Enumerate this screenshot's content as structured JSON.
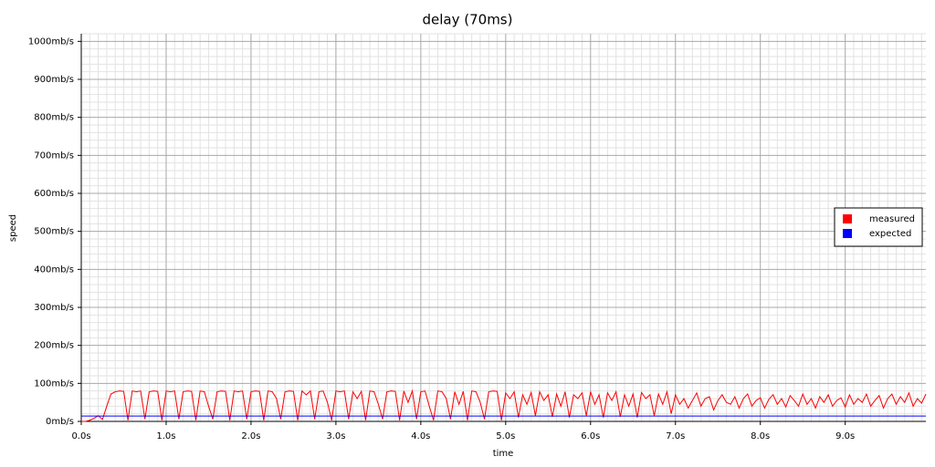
{
  "chart_data": {
    "type": "line",
    "title": "delay (70ms)",
    "x_label": "time",
    "y_label": "speed",
    "xlim": [
      0,
      9.95
    ],
    "ylim": [
      0,
      1020
    ],
    "xticks": [
      {
        "value": 0,
        "label": "0.0s"
      },
      {
        "value": 1,
        "label": "1.0s"
      },
      {
        "value": 2,
        "label": "2.0s"
      },
      {
        "value": 3,
        "label": "3.0s"
      },
      {
        "value": 4,
        "label": "4.0s"
      },
      {
        "value": 5,
        "label": "5.0s"
      },
      {
        "value": 6,
        "label": "6.0s"
      },
      {
        "value": 7,
        "label": "7.0s"
      },
      {
        "value": 8,
        "label": "8.0s"
      },
      {
        "value": 9,
        "label": "9.0s"
      }
    ],
    "yticks": [
      {
        "value": 0,
        "label": "0mb/s"
      },
      {
        "value": 100,
        "label": "100mb/s"
      },
      {
        "value": 200,
        "label": "200mb/s"
      },
      {
        "value": 300,
        "label": "300mb/s"
      },
      {
        "value": 400,
        "label": "400mb/s"
      },
      {
        "value": 500,
        "label": "500mb/s"
      },
      {
        "value": 600,
        "label": "600mb/s"
      },
      {
        "value": 700,
        "label": "700mb/s"
      },
      {
        "value": 800,
        "label": "800mb/s"
      },
      {
        "value": 900,
        "label": "900mb/s"
      },
      {
        "value": 1000,
        "label": "1000mb/s"
      }
    ],
    "grid": true,
    "legend": "right",
    "series": [
      {
        "name": "measured",
        "color": "#ff0000",
        "x": [
          0,
          0.05,
          0.1,
          0.15,
          0.2,
          0.25,
          0.3,
          0.35,
          0.4,
          0.45,
          0.5,
          0.55,
          0.6,
          0.65,
          0.7,
          0.75,
          0.8,
          0.85,
          0.9,
          0.95,
          1,
          1.05,
          1.1,
          1.15,
          1.2,
          1.25,
          1.3,
          1.35,
          1.4,
          1.45,
          1.5,
          1.55,
          1.6,
          1.65,
          1.7,
          1.75,
          1.8,
          1.85,
          1.9,
          1.95,
          2,
          2.05,
          2.1,
          2.15,
          2.2,
          2.25,
          2.3,
          2.35,
          2.4,
          2.45,
          2.5,
          2.55,
          2.6,
          2.65,
          2.7,
          2.75,
          2.8,
          2.85,
          2.9,
          2.95,
          3,
          3.05,
          3.1,
          3.15,
          3.2,
          3.25,
          3.3,
          3.35,
          3.4,
          3.45,
          3.5,
          3.55,
          3.6,
          3.65,
          3.7,
          3.75,
          3.8,
          3.85,
          3.9,
          3.95,
          4,
          4.05,
          4.1,
          4.15,
          4.2,
          4.25,
          4.3,
          4.35,
          4.4,
          4.45,
          4.5,
          4.55,
          4.6,
          4.65,
          4.7,
          4.75,
          4.8,
          4.85,
          4.9,
          4.95,
          5,
          5.05,
          5.1,
          5.15,
          5.2,
          5.25,
          5.3,
          5.35,
          5.4,
          5.45,
          5.5,
          5.55,
          5.6,
          5.65,
          5.7,
          5.75,
          5.8,
          5.85,
          5.9,
          5.95,
          6,
          6.05,
          6.1,
          6.15,
          6.2,
          6.25,
          6.3,
          6.35,
          6.4,
          6.45,
          6.5,
          6.55,
          6.6,
          6.65,
          6.7,
          6.75,
          6.8,
          6.85,
          6.9,
          6.95,
          7,
          7.05,
          7.1,
          7.15,
          7.2,
          7.25,
          7.3,
          7.35,
          7.4,
          7.45,
          7.5,
          7.55,
          7.6,
          7.65,
          7.7,
          7.75,
          7.8,
          7.85,
          7.9,
          7.95,
          8,
          8.05,
          8.1,
          8.15,
          8.2,
          8.25,
          8.3,
          8.35,
          8.4,
          8.45,
          8.5,
          8.55,
          8.6,
          8.65,
          8.7,
          8.75,
          8.8,
          8.85,
          8.9,
          8.95,
          9,
          9.05,
          9.1,
          9.15,
          9.2,
          9.25,
          9.3,
          9.35,
          9.4,
          9.45,
          9.5,
          9.55,
          9.6,
          9.65,
          9.7,
          9.75,
          9.8,
          9.85,
          9.9,
          9.95
        ],
        "values": [
          0,
          0,
          3,
          8,
          15,
          5,
          40,
          72,
          78,
          80,
          79,
          3,
          80,
          78,
          80,
          6,
          78,
          80,
          79,
          3,
          80,
          78,
          80,
          6,
          78,
          80,
          79,
          3,
          80,
          78,
          40,
          6,
          78,
          80,
          79,
          3,
          80,
          78,
          80,
          6,
          78,
          80,
          79,
          3,
          80,
          78,
          60,
          6,
          78,
          80,
          79,
          3,
          80,
          70,
          80,
          6,
          78,
          80,
          50,
          3,
          80,
          78,
          80,
          6,
          78,
          60,
          79,
          3,
          80,
          78,
          45,
          6,
          78,
          80,
          79,
          3,
          80,
          50,
          80,
          6,
          78,
          80,
          40,
          3,
          80,
          78,
          60,
          6,
          78,
          45,
          79,
          3,
          80,
          78,
          50,
          6,
          78,
          80,
          79,
          3,
          75,
          60,
          78,
          10,
          70,
          45,
          76,
          15,
          78,
          55,
          70,
          12,
          72,
          40,
          78,
          10,
          70,
          60,
          75,
          15,
          78,
          45,
          70,
          10,
          75,
          55,
          78,
          12,
          70,
          40,
          72,
          10,
          76,
          60,
          70,
          15,
          72,
          45,
          78,
          20,
          70,
          45,
          60,
          35,
          55,
          75,
          40,
          60,
          65,
          30,
          55,
          70,
          50,
          45,
          65,
          35,
          60,
          72,
          40,
          55,
          62,
          35,
          58,
          70,
          45,
          60,
          38,
          68,
          55,
          40,
          72,
          45,
          60,
          35,
          65,
          50,
          70,
          40,
          55,
          62,
          38,
          70,
          45,
          60,
          50,
          72,
          40,
          55,
          68,
          35,
          60,
          72,
          45,
          65,
          50,
          75,
          40,
          60,
          48,
          72
        ]
      },
      {
        "name": "expected",
        "color": "#0000ff",
        "x": [
          0,
          9.95
        ],
        "values": [
          14,
          14
        ]
      }
    ]
  }
}
